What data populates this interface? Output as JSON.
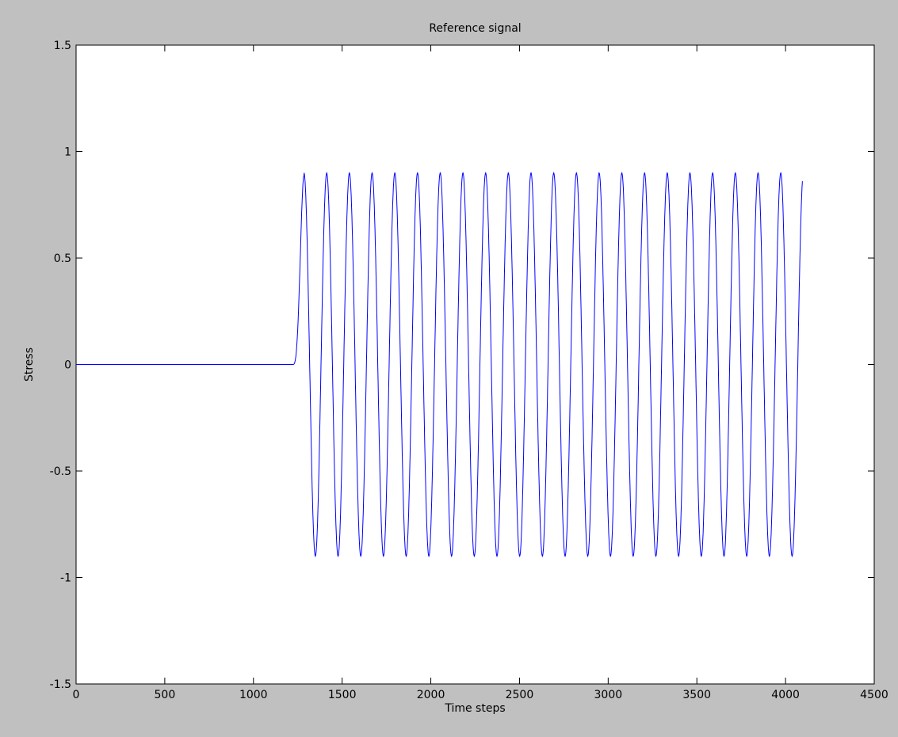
{
  "chart_data": {
    "type": "line",
    "title": "Reference signal",
    "xlabel": "Time steps",
    "ylabel": "Stress",
    "xlim": [
      0,
      4500
    ],
    "ylim": [
      -1.5,
      1.5
    ],
    "xticks": [
      0,
      500,
      1000,
      1500,
      2000,
      2500,
      3000,
      3500,
      4000,
      4500
    ],
    "yticks": [
      -1.5,
      -1,
      -0.5,
      0,
      0.5,
      1,
      1.5
    ],
    "xtick_labels": [
      "0",
      "500",
      "1000",
      "1500",
      "2000",
      "2500",
      "3000",
      "3500",
      "4000",
      "4500"
    ],
    "ytick_labels": [
      "-1.5",
      "-1",
      "-0.5",
      "0",
      "0.5",
      "1",
      "1.5"
    ],
    "grid": false,
    "series": [
      {
        "color": "#0000ff",
        "segments": [
          {
            "kind": "constant",
            "x_start": 0,
            "x_end": 1220,
            "value": 0
          },
          {
            "kind": "ramp_in",
            "x_start": 1220,
            "x_end": 1285,
            "value_start": 0,
            "value_end": 0.89
          },
          {
            "kind": "sinusoid",
            "x_start": 1285,
            "x_end": 4096,
            "amplitude": 0.9,
            "period": 128,
            "peak_at": 1285
          }
        ]
      }
    ]
  },
  "colors": {
    "figure_background": "#c0c0c0",
    "axes_background": "#ffffff",
    "line": "#0000ff"
  }
}
